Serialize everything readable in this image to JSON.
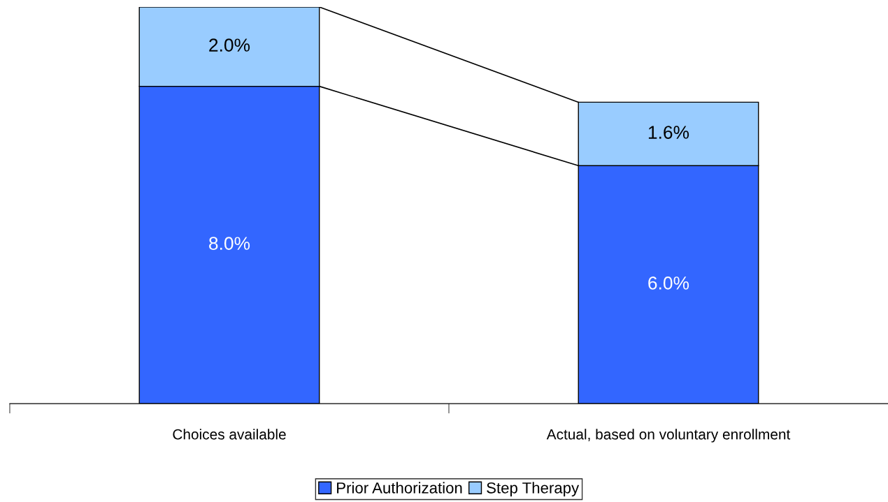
{
  "chart_data": {
    "type": "bar",
    "stacked": true,
    "categories": [
      "Choices available",
      "Actual, based on voluntary enrollment"
    ],
    "series": [
      {
        "name": "Prior Authorization",
        "color": "#3366ff",
        "values": [
          8.0,
          6.0
        ],
        "value_labels": [
          "8.0%",
          "6.0%"
        ]
      },
      {
        "name": "Step Therapy",
        "color": "#99ccff",
        "values": [
          2.0,
          1.6
        ],
        "value_labels": [
          "2.0%",
          "1.6%"
        ]
      }
    ],
    "ylim": [
      0,
      10
    ],
    "tick_labels": "x",
    "grid": false,
    "legend": "bottom"
  }
}
